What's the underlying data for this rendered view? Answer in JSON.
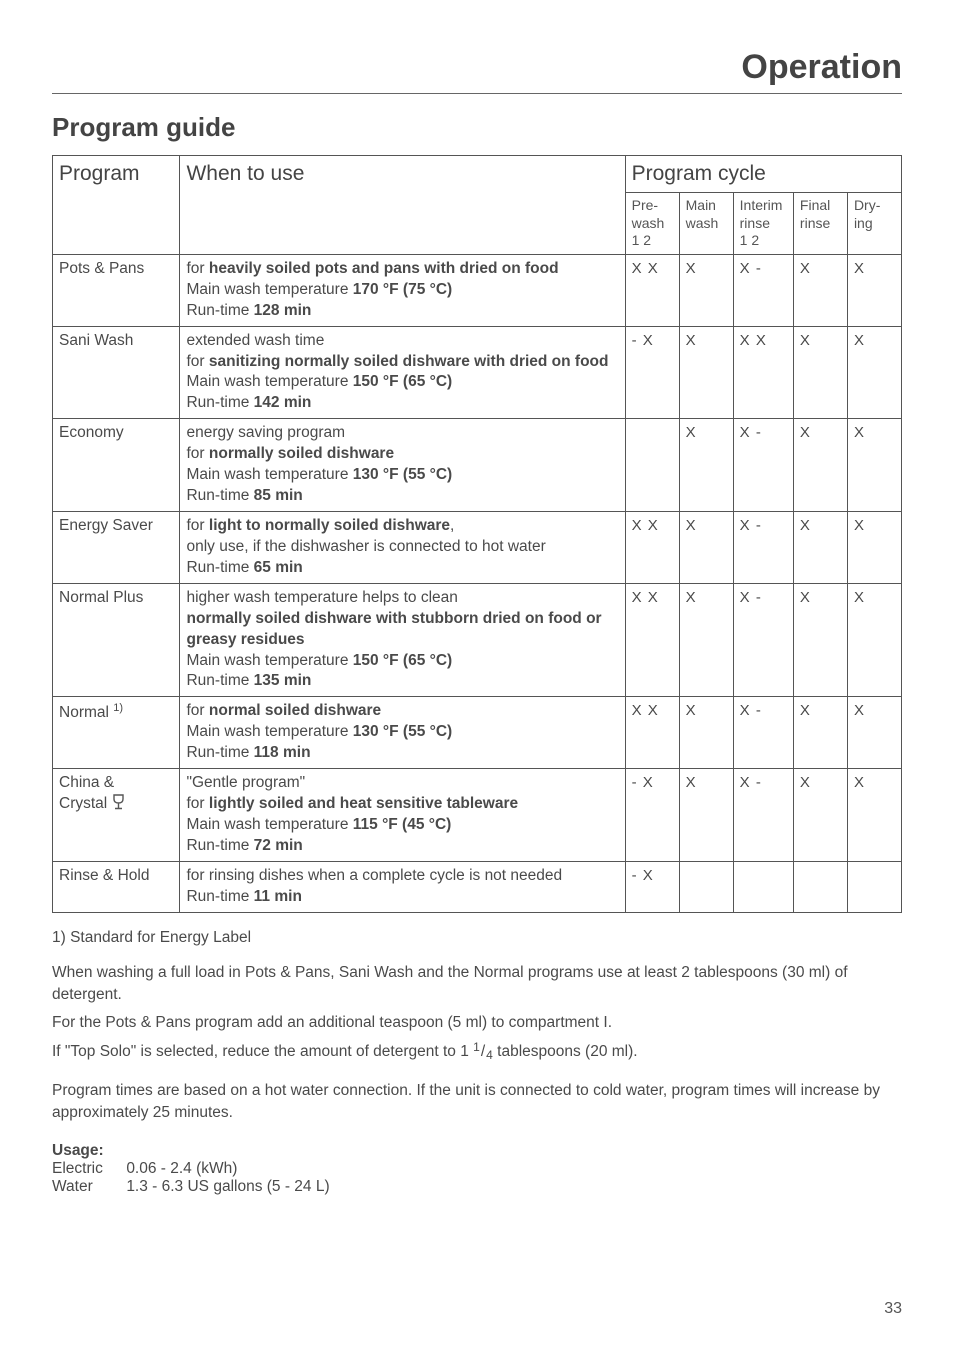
{
  "page": {
    "title": "Operation",
    "section": "Program guide",
    "pageNumber": "33"
  },
  "headers": {
    "program": "Program",
    "when": "When to use",
    "cycle": "Program cycle",
    "prewash": "Pre-\nwash\n1   2",
    "main": "Main\nwash",
    "interim": "Interim\nrinse\n1   2",
    "final": "Final\nrinse",
    "drying": "Dry-\ning"
  },
  "rows": [
    {
      "program": "Pots & Pans",
      "when_l1": "for ",
      "when_b1": "heavily soiled pots and pans with dried on food",
      "when_l2": "Main wash temperature ",
      "when_b2": "170 °F (75 °C)",
      "when_l3": "Run-time ",
      "when_b3": "128 min",
      "prewash": "X  X",
      "main": "X",
      "interim": "X   -",
      "final": "X",
      "drying": "X"
    },
    {
      "program": "Sani Wash",
      "when_l0": "extended wash time",
      "when_l1": "for ",
      "when_b1": "sanitizing normally soiled dishware with dried on food",
      "when_l2": "Main wash temperature ",
      "when_b2": "150 °F (65 °C)",
      "when_l3": "Run-time ",
      "when_b3": "142 min",
      "prewash": "-   X",
      "main": "X",
      "interim": "X  X",
      "final": "X",
      "drying": "X"
    },
    {
      "program": "Economy",
      "when_l0": "energy saving program",
      "when_l1": "for ",
      "when_b1": "normally soiled dishware",
      "when_l2": "Main wash temperature ",
      "when_b2": "130 °F (55 °C)",
      "when_l3": "Run-time ",
      "when_b3": "85 min",
      "prewash": "",
      "main": "X",
      "interim": "X   -",
      "final": "X",
      "drying": "X"
    },
    {
      "program": "Energy Saver",
      "when_l1": "for ",
      "when_b1": "light to normally soiled dishware",
      "when_tail1": ",",
      "when_l2a": "only use, if the dishwasher is connected to hot water",
      "when_l3": "Run-time ",
      "when_b3": "65 min",
      "prewash": "X  X",
      "main": "X",
      "interim": "X   -",
      "final": "X",
      "drying": "X"
    },
    {
      "program": "Normal Plus",
      "when_l0": "higher wash temperature helps to clean",
      "when_b1": "normally soiled dishware with stubborn dried on food or greasy residues",
      "when_l2": "Main wash temperature ",
      "when_b2": "150 °F (65 °C)",
      "when_l3": "Run-time ",
      "when_b3": "135 min",
      "prewash": "X  X",
      "main": "X",
      "interim": "X   -",
      "final": "X",
      "drying": "X"
    },
    {
      "program_a": "Normal ",
      "program_sup": "1)",
      "when_l1": "for ",
      "when_b1": "normal soiled dishware",
      "when_l2": "Main wash temperature ",
      "when_b2": "130 °F (55 °C)",
      "when_l3": "Run-time ",
      "when_b3": "118 min",
      "prewash": "X  X",
      "main": "X",
      "interim": "X   -",
      "final": "X",
      "drying": "X"
    },
    {
      "program_a": "China &\nCrystal ",
      "has_icon": true,
      "when_l0": "\"Gentle program\"",
      "when_l1": "for ",
      "when_b1": "lightly soiled and heat sensitive tableware",
      "when_l2": "Main wash temperature ",
      "when_b2": "115 °F (45 °C)",
      "when_l3": "Run-time ",
      "when_b3": "72 min",
      "prewash": "-   X",
      "main": "X",
      "interim": "X  -",
      "final": "X",
      "drying": "X"
    },
    {
      "program": "Rinse & Hold",
      "when_l2a": "for rinsing dishes when a complete cycle is not needed",
      "when_l3": "Run-time ",
      "when_b3": "11 min",
      "prewash": "-   X",
      "main": "",
      "interim": "",
      "final": "",
      "drying": ""
    }
  ],
  "footnote": "1)  Standard for Energy Label",
  "body": {
    "p1": "When washing a full load in Pots & Pans, Sani Wash and the Normal programs use at least 2 tablespoons (30 ml) of detergent.",
    "p2": "For the Pots & Pans program add an additional teaspoon (5 ml) to compartment I.",
    "p3a": "If \"Top Solo\" is selected, reduce the amount of detergent to 1 ",
    "p3_num": "1",
    "p3_den": "4",
    "p3b": "  tablespoons (20 ml).",
    "p4": "Program times are based on a hot water connection. If the unit is connected to cold water, program times will increase by approximately 25 minutes."
  },
  "usage": {
    "heading": "Usage:",
    "electricLabel": "Electric",
    "electricValue": "0.06 - 2.4 (kWh)",
    "waterLabel": "Water",
    "waterValue": "1.3 - 6.3 US gallons (5 - 24 L)"
  }
}
